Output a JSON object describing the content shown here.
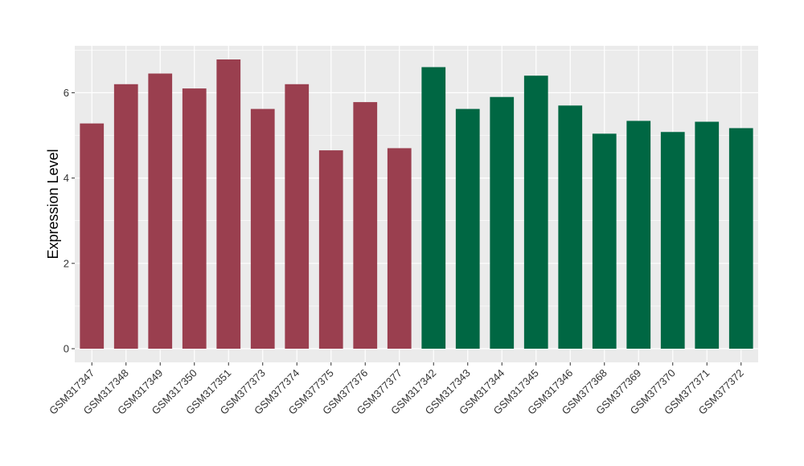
{
  "chart_data": {
    "type": "bar",
    "title": "",
    "xlabel": "",
    "ylabel": "Expression Level",
    "ylim": [
      -0.32,
      7.1
    ],
    "yticks": [
      0,
      2,
      4,
      6
    ],
    "grid": true,
    "legend": "none",
    "categories": [
      "GSM317347",
      "GSM317348",
      "GSM317349",
      "GSM317350",
      "GSM317351",
      "GSM377373",
      "GSM377374",
      "GSM377375",
      "GSM377376",
      "GSM377377",
      "GSM317342",
      "GSM317343",
      "GSM317344",
      "GSM317345",
      "GSM317346",
      "GSM377368",
      "GSM377369",
      "GSM377370",
      "GSM377371",
      "GSM377372"
    ],
    "values": [
      5.28,
      6.2,
      6.45,
      6.1,
      6.78,
      5.62,
      6.2,
      4.65,
      5.78,
      4.7,
      6.6,
      5.62,
      5.9,
      6.4,
      5.7,
      5.04,
      5.34,
      5.08,
      5.32,
      5.17
    ],
    "colors": [
      "#9a3f4f",
      "#9a3f4f",
      "#9a3f4f",
      "#9a3f4f",
      "#9a3f4f",
      "#9a3f4f",
      "#9a3f4f",
      "#9a3f4f",
      "#9a3f4f",
      "#9a3f4f",
      "#006743",
      "#006743",
      "#006743",
      "#006743",
      "#006743",
      "#006743",
      "#006743",
      "#006743",
      "#006743",
      "#006743"
    ],
    "panel_background": "#ebebeb",
    "grid_color": "#ffffff"
  }
}
